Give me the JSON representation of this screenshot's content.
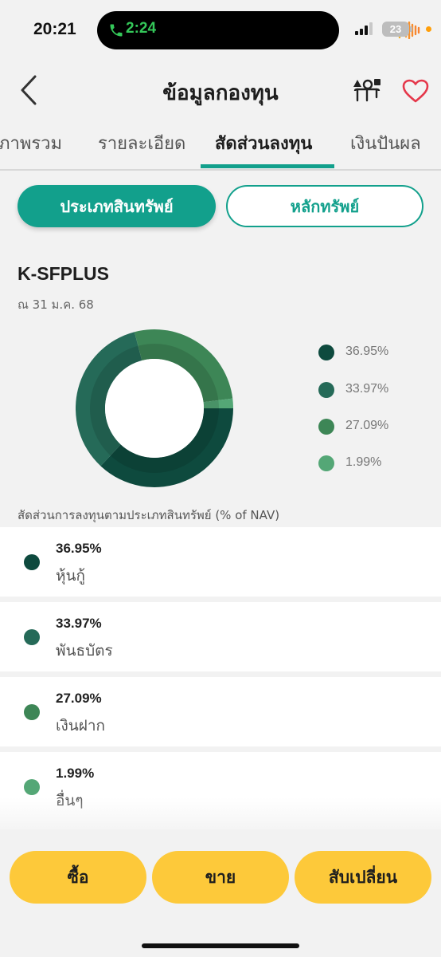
{
  "status_bar": {
    "time": "20:21",
    "call_time": "2:24",
    "battery": "23"
  },
  "header": {
    "title": "ข้อมูลกองทุน",
    "back_icon": "chevron-left-icon",
    "compare_icon": "shapes-compare-icon",
    "favorite_icon": "heart-outline-icon"
  },
  "tabs": [
    {
      "label": "ภาพรวม"
    },
    {
      "label": "รายละเอียด"
    },
    {
      "label": "สัดส่วนลงทุน"
    },
    {
      "label": "เงินปันผล"
    }
  ],
  "toggle": {
    "asset_type": "ประเภทสินทรัพย์",
    "securities": "หลักทรัพย์"
  },
  "fund": {
    "code": "K-SFPLUS",
    "as_of": "ณ 31 ม.ค. 68"
  },
  "chart_data": {
    "type": "pie",
    "labels": [
      "หุ้นกู้",
      "พันธบัตร",
      "เงินฝาก",
      "อื่นๆ"
    ],
    "values": [
      36.95,
      33.97,
      27.09,
      1.99
    ],
    "value_labels": [
      "36.95%",
      "33.97%",
      "27.09%",
      "1.99%"
    ],
    "colors": [
      "#0e4a3e",
      "#256a58",
      "#3d8656",
      "#54a776"
    ],
    "legend_placement": "right",
    "caption": "สัดส่วนการลงทุนตามประเภทสินทรัพย์ (% of NAV)"
  },
  "assets": [
    {
      "percent": "36.95%",
      "name": "หุ้นกู้"
    },
    {
      "percent": "33.97%",
      "name": "พันธบัตร"
    },
    {
      "percent": "27.09%",
      "name": "เงินฝาก"
    },
    {
      "percent": "1.99%",
      "name": "อื่นๆ"
    }
  ],
  "actions": {
    "buy": "ซื้อ",
    "sell": "ขาย",
    "switch": "สับเปลี่ยน"
  }
}
